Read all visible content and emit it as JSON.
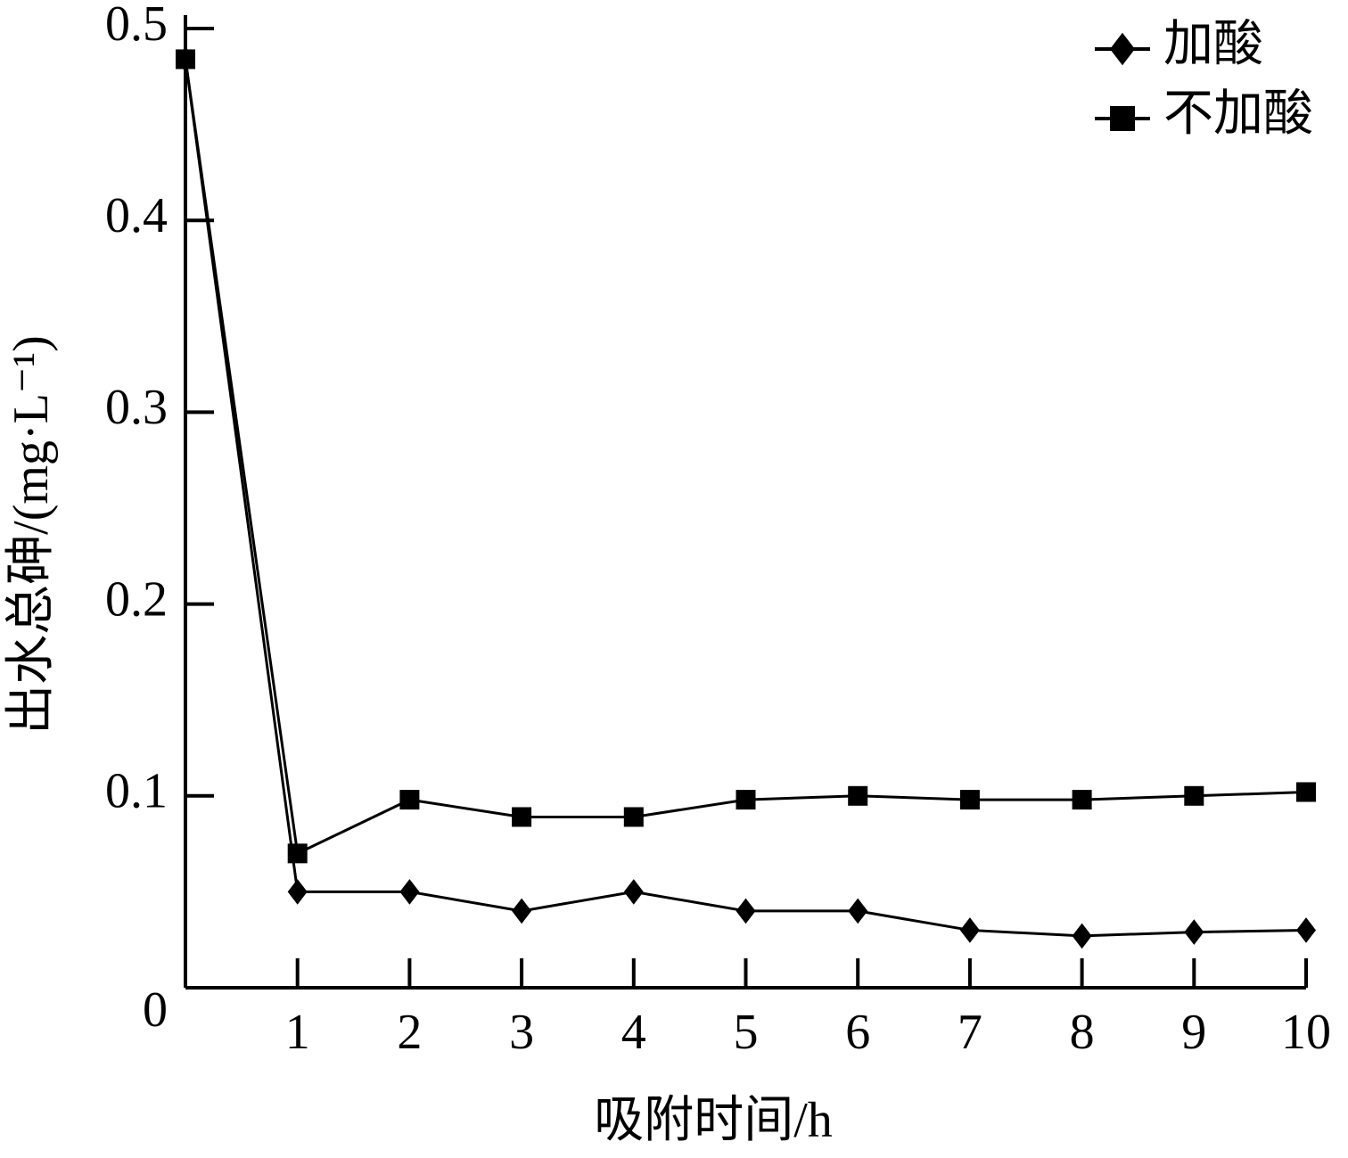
{
  "chart_data": {
    "type": "line",
    "x_label": "吸附时间/h",
    "y_label": "出水总砷/(mg·L⁻¹)",
    "x": [
      0,
      1,
      2,
      3,
      4,
      5,
      6,
      7,
      8,
      9,
      10
    ],
    "xlim": [
      0,
      10
    ],
    "xticks": [
      1,
      2,
      3,
      4,
      5,
      6,
      7,
      8,
      9,
      10
    ],
    "ylim": [
      0,
      0.5
    ],
    "yticks": [
      0,
      0.1,
      0.2,
      0.3,
      0.4,
      0.5
    ],
    "legend": "top-right",
    "series": [
      {
        "name": "加酸",
        "color": "#000000",
        "marker": "diamond",
        "values": [
          0.484,
          0.05,
          0.05,
          0.04,
          0.05,
          0.04,
          0.04,
          0.03,
          0.027,
          0.029,
          0.03
        ]
      },
      {
        "name": "不加酸",
        "color": "#000000",
        "marker": "square",
        "values": [
          0.484,
          0.07,
          0.098,
          0.089,
          0.089,
          0.098,
          0.1,
          0.098,
          0.098,
          0.1,
          0.102
        ]
      }
    ]
  }
}
